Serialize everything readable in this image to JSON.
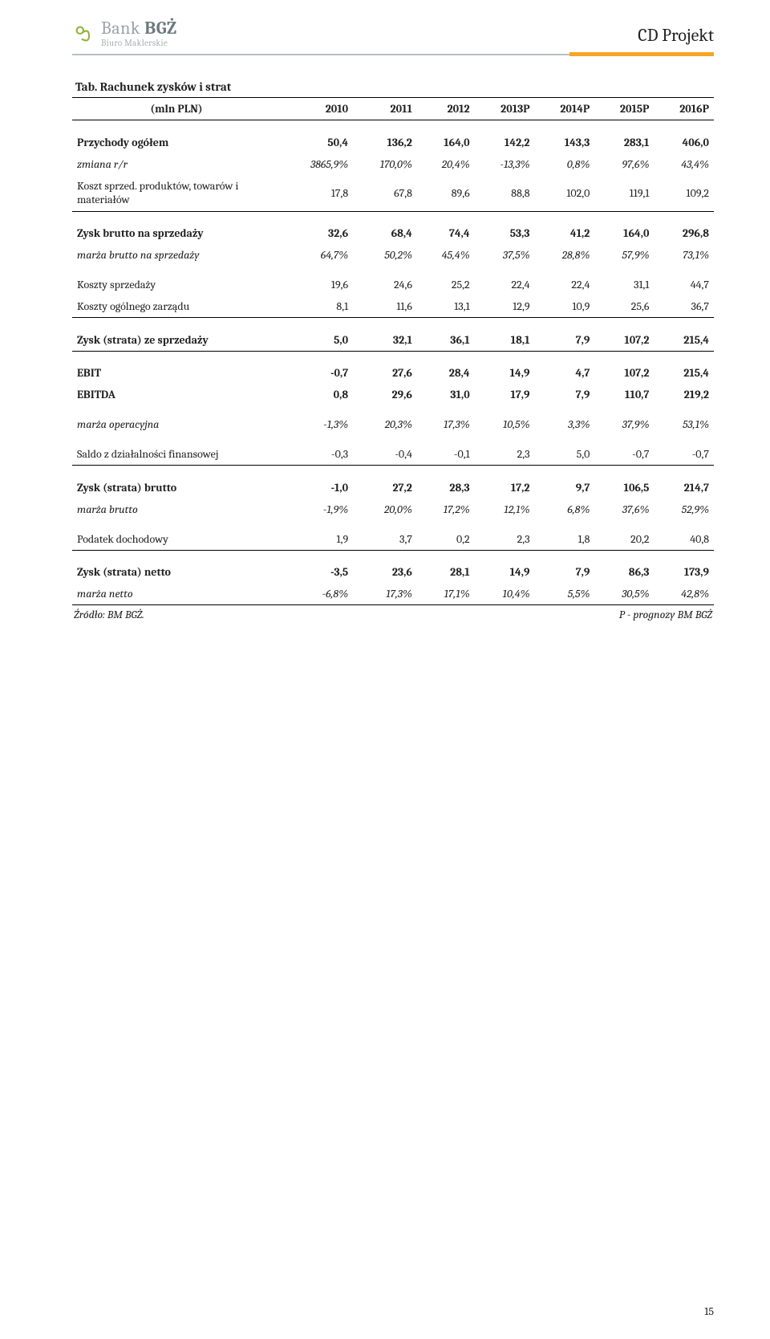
{
  "header": {
    "doc_title": "CD Projekt",
    "logo_main_a": "Bank",
    "logo_main_b": "BGŻ",
    "logo_sub": "Biuro Maklerskie",
    "accent_color": "#f5a623",
    "rule_color": "#b9bfc2"
  },
  "table": {
    "title": "Tab. Rachunek zysków i strat",
    "unit_label": "(mln PLN)",
    "years": [
      "2010",
      "2011",
      "2012",
      "2013P",
      "2014P",
      "2015P",
      "2016P"
    ],
    "sections": [
      {
        "rows": [
          {
            "label": "Przychody ogółem",
            "vals": [
              "50,4",
              "136,2",
              "164,0",
              "142,2",
              "143,3",
              "283,1",
              "406,0"
            ],
            "bold": true
          },
          {
            "label": "zmiana r/r",
            "vals": [
              "3865,9%",
              "170,0%",
              "20,4%",
              "-13,3%",
              "0,8%",
              "97,6%",
              "43,4%"
            ],
            "italic": true
          },
          {
            "label": "Koszt sprzed. produktów, towarów i materiałów",
            "vals": [
              "17,8",
              "67,8",
              "89,6",
              "88,8",
              "102,0",
              "119,1",
              "109,2"
            ],
            "wrap": true
          }
        ],
        "border_bottom": true
      },
      {
        "rows": [
          {
            "label": "Zysk brutto na sprzedaży",
            "vals": [
              "32,6",
              "68,4",
              "74,4",
              "53,3",
              "41,2",
              "164,0",
              "296,8"
            ],
            "bold": true
          },
          {
            "label": "marża brutto na sprzedaży",
            "vals": [
              "64,7%",
              "50,2%",
              "45,4%",
              "37,5%",
              "28,8%",
              "57,9%",
              "73,1%"
            ],
            "italic": true
          },
          {
            "label": "Koszty sprzedaży",
            "vals": [
              "19,6",
              "24,6",
              "25,2",
              "22,4",
              "22,4",
              "31,1",
              "44,7"
            ],
            "gap_before": true
          },
          {
            "label": "Koszty ogólnego zarządu",
            "vals": [
              "8,1",
              "11,6",
              "13,1",
              "12,9",
              "10,9",
              "25,6",
              "36,7"
            ]
          }
        ],
        "border_bottom": true
      },
      {
        "rows": [
          {
            "label": "Zysk (strata) ze sprzedaży",
            "vals": [
              "5,0",
              "32,1",
              "36,1",
              "18,1",
              "7,9",
              "107,2",
              "215,4"
            ],
            "bold": true
          }
        ],
        "border_bottom": true
      },
      {
        "rows": [
          {
            "label": "EBIT",
            "vals": [
              "-0,7",
              "27,6",
              "28,4",
              "14,9",
              "4,7",
              "107,2",
              "215,4"
            ],
            "bold": true
          },
          {
            "label": "EBITDA",
            "vals": [
              "0,8",
              "29,6",
              "31,0",
              "17,9",
              "7,9",
              "110,7",
              "219,2"
            ],
            "bold": true
          },
          {
            "label": "marża operacyjna",
            "vals": [
              "-1,3%",
              "20,3%",
              "17,3%",
              "10,5%",
              "3,3%",
              "37,9%",
              "53,1%"
            ],
            "italic": true,
            "gap_before": true
          },
          {
            "label": "Saldo z działalności finansowej",
            "vals": [
              "-0,3",
              "-0,4",
              "-0,1",
              "2,3",
              "5,0",
              "-0,7",
              "-0,7"
            ],
            "gap_before": true
          }
        ],
        "border_bottom": true
      },
      {
        "rows": [
          {
            "label": "Zysk (strata) brutto",
            "vals": [
              "-1,0",
              "27,2",
              "28,3",
              "17,2",
              "9,7",
              "106,5",
              "214,7"
            ],
            "bold": true
          },
          {
            "label": "marża brutto",
            "vals": [
              "-1,9%",
              "20,0%",
              "17,2%",
              "12,1%",
              "6,8%",
              "37,6%",
              "52,9%"
            ],
            "italic": true
          },
          {
            "label": "Podatek dochodowy",
            "vals": [
              "1,9",
              "3,7",
              "0,2",
              "2,3",
              "1,8",
              "20,2",
              "40,8"
            ],
            "gap_before": true
          }
        ],
        "border_bottom": true
      },
      {
        "rows": [
          {
            "label": "Zysk (strata) netto",
            "vals": [
              "-3,5",
              "23,6",
              "28,1",
              "14,9",
              "7,9",
              "86,3",
              "173,9"
            ],
            "bold": true
          },
          {
            "label": "marża netto",
            "vals": [
              "-6,8%",
              "17,3%",
              "17,1%",
              "10,4%",
              "5,5%",
              "30,5%",
              "42,8%"
            ],
            "italic": true
          }
        ],
        "border_bottom": true,
        "thin": true
      }
    ],
    "source_left": "Źródło: BM BGŻ.",
    "source_right": "P - prognozy BM BGŻ"
  },
  "page_number": "15"
}
